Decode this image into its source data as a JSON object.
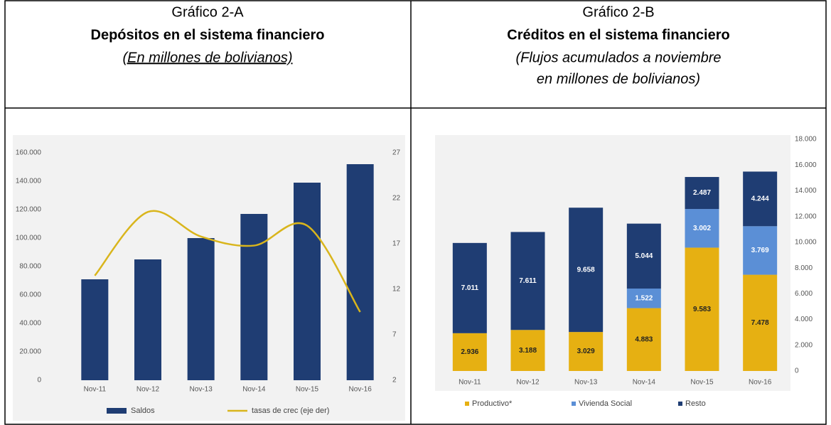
{
  "headers": [
    {
      "label": "Gráfico 2-A",
      "title": "Depósitos en el sistema financiero",
      "subtitle": [
        "(En millones de bolivianos)"
      ]
    },
    {
      "label": "Gráfico 2-B",
      "title": "Créditos en el sistema financiero",
      "subtitle": [
        "(Flujos acumulados a noviembre",
        "en millones de bolivianos)"
      ]
    }
  ],
  "chart_data": [
    {
      "type": "bar",
      "categories": [
        "Nov-11",
        "Nov-12",
        "Nov-13",
        "Nov-14",
        "Nov-15",
        "Nov-16"
      ],
      "series": [
        {
          "name": "Saldos",
          "color": "#1f3d73",
          "values": [
            71000,
            85000,
            100000,
            117000,
            139000,
            152000
          ]
        },
        {
          "name": "tasas de crec (eje der)",
          "type": "line",
          "axis": "y2",
          "color": "#d9b51c",
          "values": [
            13.5,
            20.5,
            17.8,
            16.8,
            19,
            9.5
          ]
        }
      ],
      "ylim": [
        0,
        160000
      ],
      "yticks": [
        0,
        {
          "value": 20000,
          "label": "20.000"
        },
        {
          "value": 40000,
          "label": "40.000"
        },
        {
          "value": 60000,
          "label": "60.000"
        },
        {
          "value": 80000,
          "label": "80.000"
        },
        {
          "value": 100000,
          "label": "100.000"
        },
        {
          "value": 120000,
          "label": "120.000"
        },
        {
          "value": 140000,
          "label": "140.000"
        },
        {
          "value": 160000,
          "label": "160.000"
        }
      ],
      "y2lim": [
        2,
        27
      ],
      "y2ticks": [
        2,
        7,
        12,
        17,
        22,
        27
      ],
      "grid": false
    },
    {
      "type": "stacked_bar",
      "categories": [
        "Nov-11",
        "Nov-12",
        "Nov-13",
        "Nov-14",
        "Nov-15",
        "Nov-16"
      ],
      "series": [
        {
          "name": "Productivo*",
          "color": "#e6b012",
          "values": [
            2936,
            3188,
            3029,
            4883,
            9583,
            7478
          ],
          "value_labels": [
            "2.936",
            "3.188",
            "3.029",
            "4.883",
            "9.583",
            "7.478"
          ]
        },
        {
          "name": "Vivienda Social",
          "color": "#5b8fd6",
          "values": [
            null,
            null,
            null,
            1522,
            3002,
            3769
          ],
          "value_labels": [
            null,
            null,
            null,
            "1.522",
            "3.002",
            "3.769"
          ]
        },
        {
          "name": "Resto",
          "color": "#1f3d73",
          "values": [
            7011,
            7611,
            9658,
            5044,
            2487,
            4244
          ],
          "value_labels": [
            "7.011",
            "7.611",
            "9.658",
            "5.044",
            "2.487",
            "4.244"
          ]
        }
      ],
      "ylim": [
        0,
        18000
      ],
      "yticks": [
        0,
        {
          "value": 2000,
          "label": "2.000"
        },
        {
          "value": 4000,
          "label": "4.000"
        },
        {
          "value": 6000,
          "label": "6.000"
        },
        {
          "value": 8000,
          "label": "8.000"
        },
        {
          "value": 10000,
          "label": "10.000"
        },
        {
          "value": 12000,
          "label": "12.000"
        },
        {
          "value": 14000,
          "label": "14.000"
        },
        {
          "value": 16000,
          "label": "16.000"
        },
        {
          "value": 18000,
          "label": "18.000"
        }
      ],
      "grid": false
    }
  ]
}
